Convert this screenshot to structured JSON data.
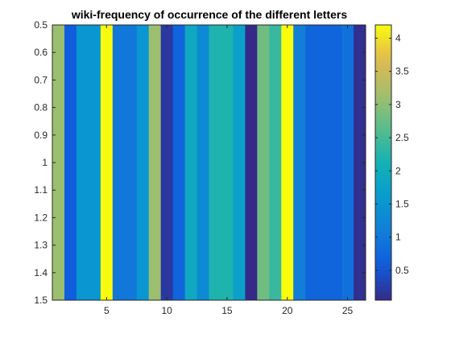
{
  "chart_data": {
    "type": "heatmap",
    "title": "wiki-frequency of occurrence of the different letters",
    "xlabel": "",
    "ylabel": "",
    "x": [
      1,
      2,
      3,
      4,
      5,
      6,
      7,
      8,
      9,
      10,
      11,
      12,
      13,
      14,
      15,
      16,
      17,
      18,
      19,
      20,
      21,
      22,
      23,
      24,
      25,
      26
    ],
    "values": [
      3.1,
      0.6,
      1.5,
      1.5,
      4.2,
      1.0,
      1.0,
      1.5,
      3.1,
      0.2,
      0.7,
      1.9,
      1.3,
      2.2,
      2.2,
      1.7,
      0.05,
      2.8,
      2.4,
      4.2,
      1.1,
      0.7,
      0.7,
      0.7,
      0.9,
      0.1
    ],
    "xlim": [
      0.5,
      26.5
    ],
    "ylim": [
      0.5,
      1.5
    ],
    "y_reversed": true,
    "xticks": [
      "5",
      "10",
      "15",
      "20",
      "25"
    ],
    "yticks": [
      "0.5",
      "0.6",
      "0.7",
      "0.8",
      "0.9",
      "1",
      "1.1",
      "1.2",
      "1.3",
      "1.4",
      "1.5"
    ],
    "colorbar": {
      "colormap": "parula",
      "clim": [
        0.05,
        4.2
      ],
      "ticks": [
        "0.5",
        "1",
        "1.5",
        "2",
        "2.5",
        "3",
        "3.5",
        "4"
      ]
    },
    "grid": false
  }
}
